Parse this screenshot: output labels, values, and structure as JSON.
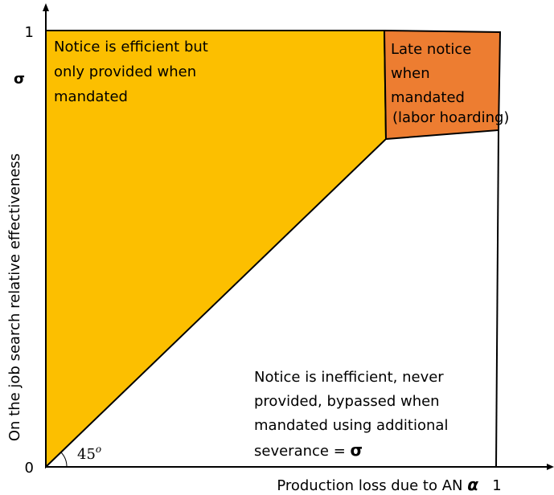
{
  "axes": {
    "y_label": "On the job search relative effectiveness",
    "y_symbol": "σ",
    "y_top": "1",
    "origin": "0",
    "x_label": "Production loss due to AN",
    "x_symbol": "α",
    "x_end": "1"
  },
  "regions": [
    {
      "lines": [
        "Notice is efficient but",
        "only provided when",
        "mandated"
      ]
    },
    {
      "lines": [
        "Late notice",
        "when",
        "mandated"
      ],
      "note": "(labor hoarding)"
    },
    {
      "lines": [
        "Notice is inefficient, never",
        "provided, bypassed when",
        "mandated using additional",
        "severance ="
      ],
      "symbol": "σ"
    }
  ],
  "angle": {
    "value": "45",
    "superscript": "o"
  }
}
